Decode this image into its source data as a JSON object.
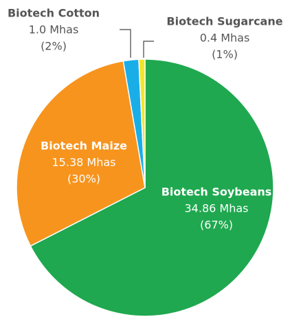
{
  "chart_data": {
    "type": "pie",
    "categories": [
      "Biotech Soybeans",
      "Biotech Maize",
      "Biotech Cotton",
      "Biotech Sugarcane"
    ],
    "values": [
      34.86,
      15.38,
      1.0,
      0.4
    ],
    "value_labels": [
      "34.86 Mhas",
      "15.38 Mhas",
      "1.0 Mhas",
      "0.4 Mhas"
    ],
    "shares": [
      67,
      30,
      2,
      1
    ],
    "share_labels": [
      "(67%)",
      "(30%)",
      "(2%)",
      "(1%)"
    ],
    "colors": [
      "#1fa84f",
      "#f7941d",
      "#1aaee8",
      "#f2e62a"
    ]
  }
}
